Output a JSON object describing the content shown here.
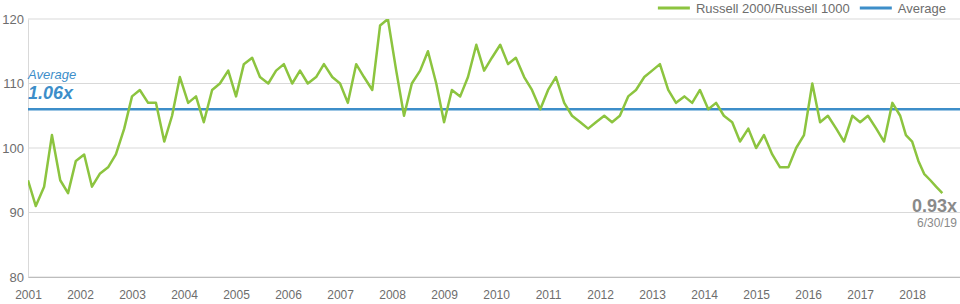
{
  "chart_data": {
    "type": "line",
    "x": [
      2001.0,
      2001.15,
      2001.31,
      2001.46,
      2001.62,
      2001.77,
      2001.92,
      2002.08,
      2002.23,
      2002.38,
      2002.54,
      2002.69,
      2002.85,
      2003.0,
      2003.15,
      2003.31,
      2003.46,
      2003.62,
      2003.77,
      2003.92,
      2004.08,
      2004.23,
      2004.38,
      2004.54,
      2004.69,
      2004.85,
      2005.0,
      2005.15,
      2005.31,
      2005.46,
      2005.62,
      2005.77,
      2005.92,
      2006.08,
      2006.23,
      2006.38,
      2006.54,
      2006.69,
      2006.85,
      2007.0,
      2007.15,
      2007.31,
      2007.46,
      2007.62,
      2007.77,
      2007.92,
      2008.08,
      2008.23,
      2008.38,
      2008.54,
      2008.69,
      2008.85,
      2009.0,
      2009.15,
      2009.31,
      2009.46,
      2009.62,
      2009.77,
      2009.92,
      2010.08,
      2010.23,
      2010.38,
      2010.54,
      2010.69,
      2010.85,
      2011.0,
      2011.15,
      2011.31,
      2011.46,
      2011.62,
      2011.77,
      2011.92,
      2012.08,
      2012.23,
      2012.38,
      2012.54,
      2012.69,
      2012.85,
      2013.0,
      2013.15,
      2013.31,
      2013.46,
      2013.62,
      2013.77,
      2013.92,
      2014.08,
      2014.23,
      2014.38,
      2014.54,
      2014.69,
      2014.85,
      2015.0,
      2015.15,
      2015.31,
      2015.46,
      2015.62,
      2015.77,
      2015.92,
      2016.08,
      2016.23,
      2016.38,
      2016.54,
      2016.69,
      2016.85,
      2017.0,
      2017.15,
      2017.31,
      2017.46,
      2017.62,
      2017.77,
      2017.88,
      2018.0,
      2018.12,
      2018.23,
      2018.35,
      2018.46,
      2018.58
    ],
    "series": [
      {
        "name": "Russell 2000/Russell 1000",
        "color": "#8cc43f",
        "values": [
          95,
          91,
          94,
          102,
          95,
          93,
          98,
          99,
          94,
          96,
          97,
          99,
          103,
          108,
          109,
          107,
          107,
          101,
          105,
          111,
          107,
          108,
          104,
          109,
          110,
          112,
          108,
          113,
          114,
          111,
          110,
          112,
          113,
          110,
          112,
          110,
          111,
          113,
          111,
          110,
          107,
          113,
          111,
          109,
          119,
          120,
          112,
          105,
          110,
          112,
          115,
          110,
          104,
          109,
          108,
          111,
          116,
          112,
          114,
          116,
          113,
          114,
          111,
          109,
          106,
          109,
          111,
          107,
          105,
          104,
          103,
          104,
          105,
          104,
          105,
          108,
          109,
          111,
          112,
          113,
          109,
          107,
          108,
          107,
          109,
          106,
          107,
          105,
          104,
          101,
          103,
          100,
          102,
          99,
          97,
          97,
          100,
          102,
          110,
          104,
          105,
          103,
          101,
          105,
          104,
          105,
          103,
          101,
          107,
          105,
          102,
          101,
          98,
          96,
          95,
          94,
          93
        ]
      }
    ],
    "average": {
      "name": "Average",
      "value": 106,
      "label": "1.06x",
      "color": "#3d8ec9"
    },
    "end_label": {
      "value": 93,
      "label": "0.93x",
      "date": "6/30/19"
    },
    "xlim": [
      2001,
      2018.92
    ],
    "xticks": [
      2001,
      2002,
      2003,
      2004,
      2005,
      2006,
      2007,
      2008,
      2009,
      2010,
      2011,
      2012,
      2013,
      2014,
      2015,
      2016,
      2017,
      2018
    ],
    "ylim": [
      80,
      120
    ],
    "yticks": [
      80,
      90,
      100,
      110,
      120
    ],
    "grid": true,
    "legend": "top-right"
  }
}
